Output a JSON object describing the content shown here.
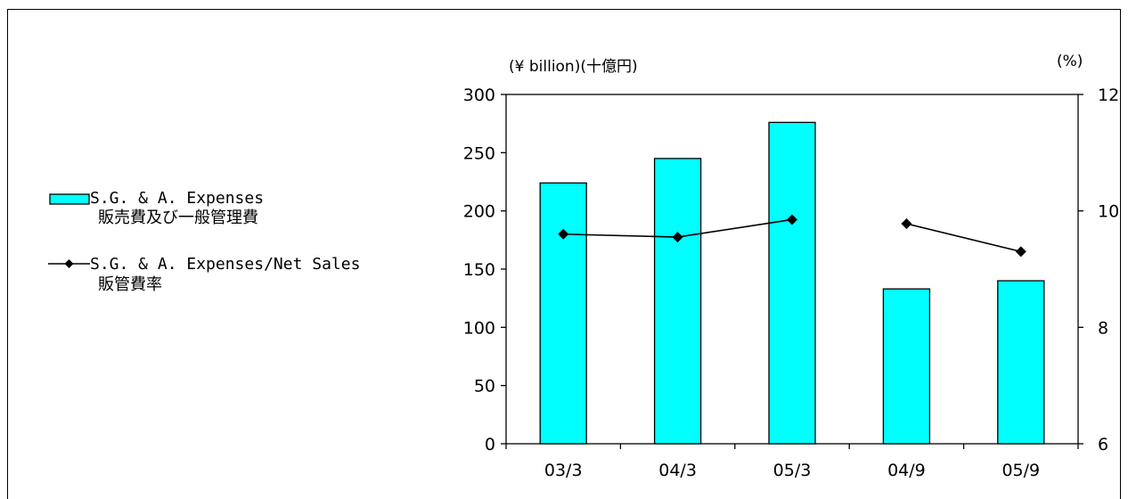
{
  "chart_data": {
    "type": "bar",
    "categories": [
      "03/3",
      "04/3",
      "05/3",
      "04/9",
      "05/9"
    ],
    "series": [
      {
        "name": "S.G. & A. Expenses",
        "name_ja": "販売費及び一般管理費",
        "kind": "bar",
        "axis": "left",
        "color": "#00ffff",
        "values": [
          224,
          245,
          276,
          133,
          140
        ]
      },
      {
        "name": "S.G. & A. Expenses/Net Sales",
        "name_ja": "販管費率",
        "kind": "line",
        "axis": "right",
        "color": "#000000",
        "marker": "diamond",
        "segments": [
          [
            0,
            2
          ],
          [
            3,
            4
          ]
        ],
        "values": [
          9.6,
          9.55,
          9.85,
          9.78,
          9.3
        ]
      }
    ],
    "left_axis": {
      "unit_label": "(¥ billion)(十億円)",
      "min": 0,
      "max": 300,
      "ticks": [
        0,
        50,
        100,
        150,
        200,
        250,
        300
      ]
    },
    "right_axis": {
      "unit_label": "(%)",
      "min": 6,
      "max": 12,
      "ticks": [
        6,
        8,
        10,
        12
      ]
    },
    "grid": false,
    "legend_position": "left"
  }
}
